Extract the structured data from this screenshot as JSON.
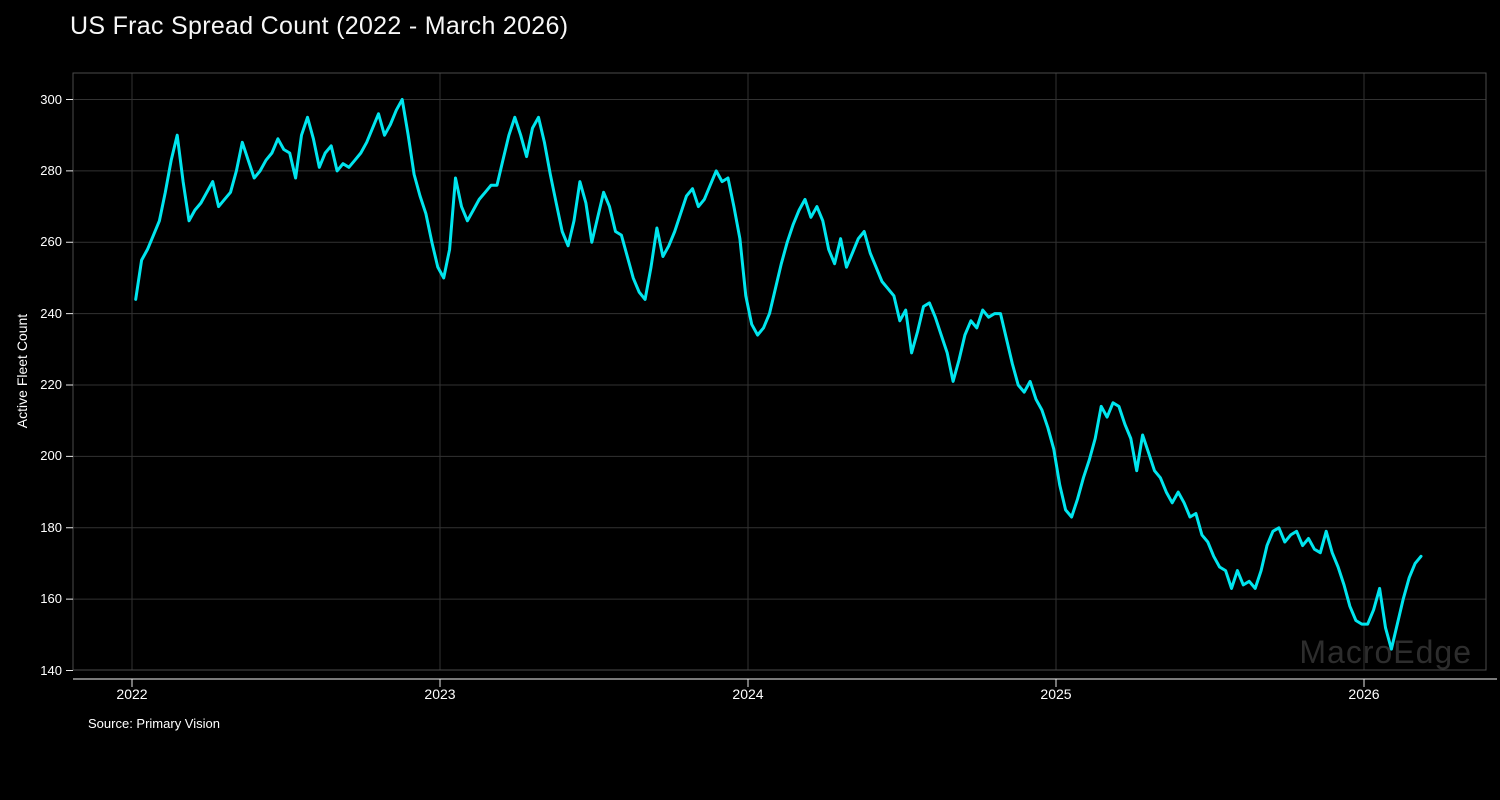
{
  "title": "US Frac Spread Count (2022 - March 2026)",
  "source": "Source: Primary Vision",
  "watermark": "MacroEdge",
  "colors": {
    "background": "#000000",
    "line": "#00e5ee",
    "grid": "#323232",
    "frame": "#4a4a4a",
    "axis_baseline": "#c4c4c4",
    "tick": "#e8e8e8",
    "text": "#ffffff",
    "watermark": "#2d2d2d"
  },
  "chart_data": {
    "type": "line",
    "title": "US Frac Spread Count (2022 - March 2026)",
    "xlabel": "",
    "ylabel": "Active Fleet Count",
    "grid": true,
    "legend_position": "none",
    "x_tick_labels": [
      "2022",
      "2023",
      "2024",
      "2025",
      "2026"
    ],
    "x_tick_years": [
      2022,
      2023,
      2024,
      2025,
      2026
    ],
    "y_ticks": [
      140,
      160,
      180,
      200,
      220,
      240,
      260,
      280,
      300
    ],
    "ylim": [
      140,
      307
    ],
    "xlim": [
      2021.81,
      2026.42
    ],
    "x_unit": "weekly",
    "x_start_decimal_year": 2022.012,
    "x_step_decimal_year": 0.019231,
    "series": [
      {
        "name": "US Frac Spread Count",
        "color": "#00e5ee",
        "values": [
          244,
          255,
          258,
          262,
          266,
          274,
          283,
          290,
          277,
          266,
          269,
          271,
          274,
          277,
          270,
          272,
          274,
          280,
          288,
          283,
          278,
          280,
          283,
          285,
          289,
          286,
          285,
          278,
          290,
          295,
          289,
          281,
          285,
          287,
          280,
          282,
          281,
          283,
          285,
          288,
          292,
          296,
          290,
          293,
          297,
          300,
          290,
          279,
          273,
          268,
          260,
          253,
          250,
          258,
          278,
          270,
          266,
          269,
          272,
          274,
          276,
          276,
          283,
          290,
          295,
          290,
          284,
          292,
          295,
          288,
          279,
          271,
          263,
          259,
          266,
          277,
          271,
          260,
          267,
          274,
          270,
          263,
          262,
          256,
          250,
          246,
          244,
          253,
          264,
          256,
          259,
          263,
          268,
          273,
          275,
          270,
          272,
          276,
          280,
          277,
          278,
          270,
          261,
          245,
          237,
          234,
          236,
          240,
          247,
          254,
          260,
          265,
          269,
          272,
          267,
          270,
          266,
          258,
          254,
          261,
          253,
          257,
          261,
          263,
          257,
          253,
          249,
          247,
          245,
          238,
          241,
          229,
          235,
          242,
          243,
          239,
          234,
          229,
          221,
          227,
          234,
          238,
          236,
          241,
          239,
          240,
          240,
          233,
          226,
          220,
          218,
          221,
          216,
          213,
          208,
          202,
          192,
          185,
          183,
          188,
          194,
          199,
          205,
          214,
          211,
          215,
          214,
          209,
          205,
          196,
          206,
          201,
          196,
          194,
          190,
          187,
          190,
          187,
          183,
          184,
          178,
          176,
          172,
          169,
          168,
          163,
          168,
          164,
          165,
          163,
          168,
          175,
          179,
          180,
          176,
          178,
          179,
          175,
          177,
          174,
          173,
          179,
          173,
          169,
          164,
          158,
          154,
          153,
          153,
          157,
          163,
          152,
          146,
          153,
          160,
          166,
          170,
          172
        ]
      }
    ]
  }
}
